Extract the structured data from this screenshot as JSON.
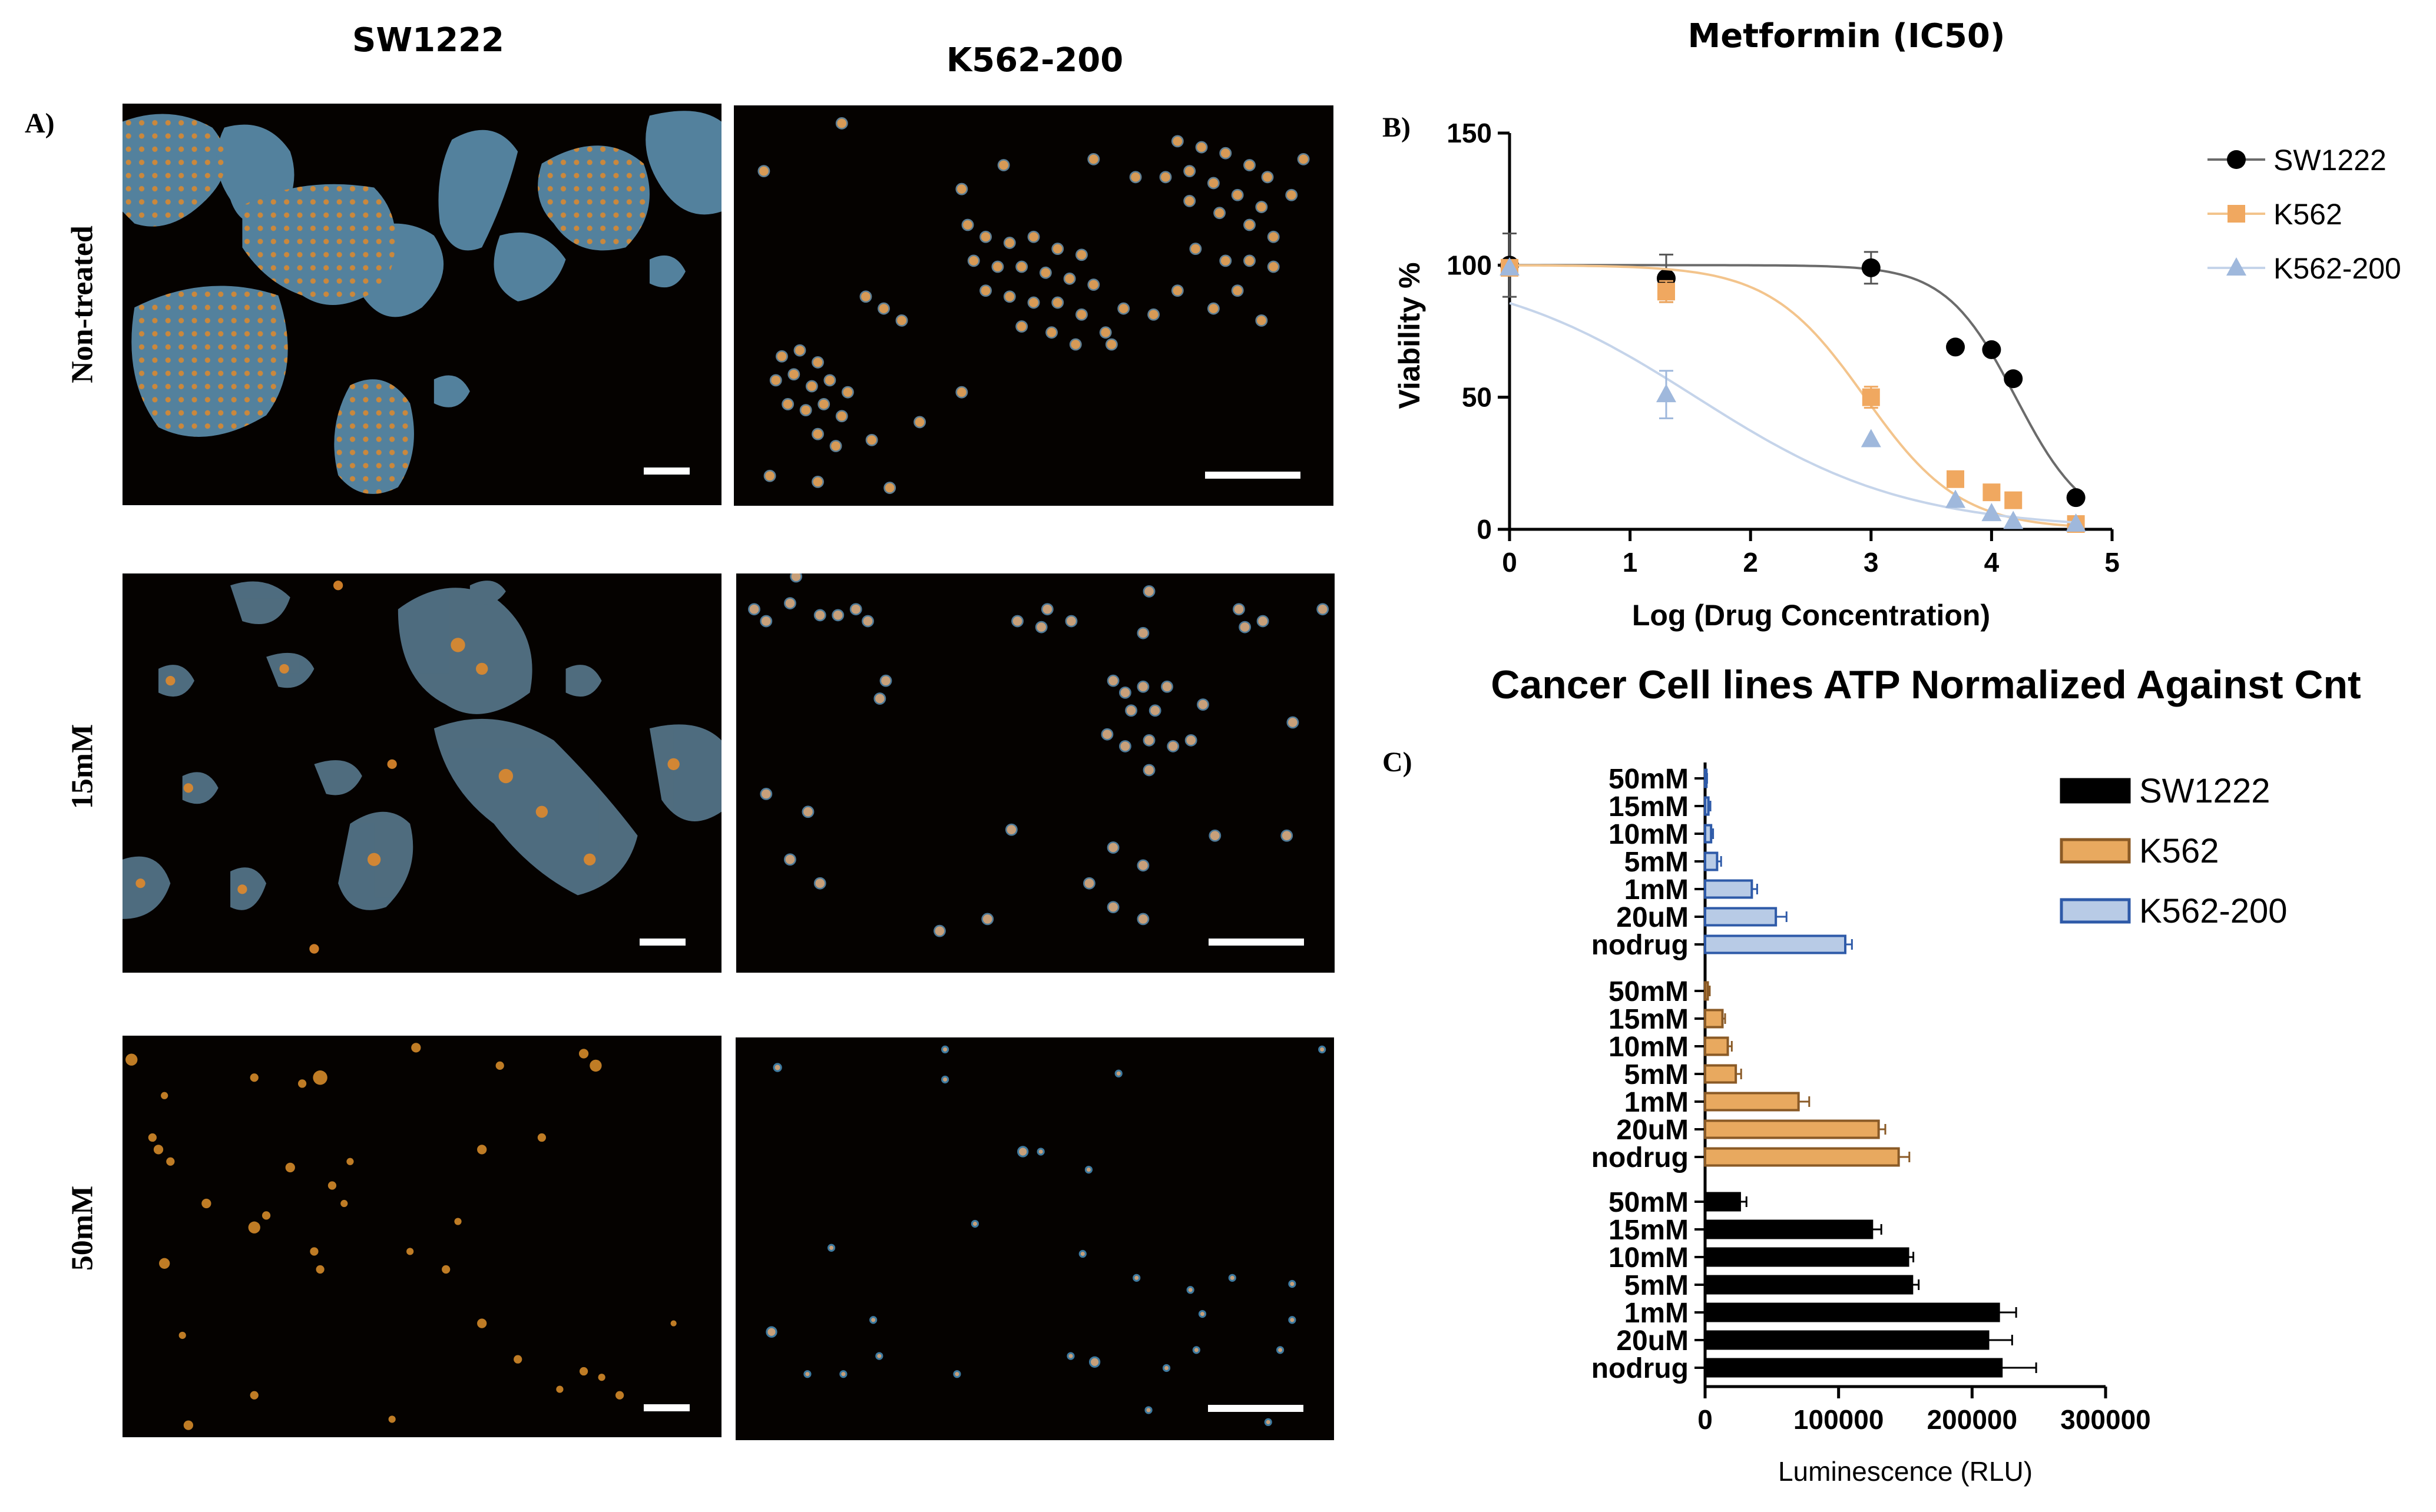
{
  "panel_a": {
    "label": "A)",
    "columns": [
      "SW1222",
      "K562-200"
    ],
    "rows": [
      "Non-treated",
      "15mM",
      "50mM"
    ]
  },
  "chart_data": [
    {
      "type": "scatter",
      "panel_label": "B)",
      "title": "Metformin (IC50)",
      "xlabel": "Log (Drug Concentration)",
      "ylabel": "Viability %",
      "xlim": [
        0,
        5
      ],
      "ylim": [
        0,
        150
      ],
      "x_ticks": [
        "0",
        "1",
        "2",
        "3",
        "4",
        "5"
      ],
      "y_ticks": [
        "0",
        "50",
        "100",
        "150"
      ],
      "legend_position": "right",
      "fit_curves": true,
      "series": [
        {
          "name": "SW1222",
          "marker": "circle",
          "color": "#000000",
          "curve_color": "#6b6b6b",
          "logIC50": 4.2,
          "hill": 1.5,
          "points": [
            {
              "x": 0,
              "y": 100,
              "err": 12
            },
            {
              "x": 1.3,
              "y": 95,
              "err": 9
            },
            {
              "x": 3,
              "y": 99,
              "err": 6
            },
            {
              "x": 3.7,
              "y": 69,
              "err": 0
            },
            {
              "x": 4,
              "y": 68,
              "err": 0
            },
            {
              "x": 4.18,
              "y": 57,
              "err": 0
            },
            {
              "x": 4.7,
              "y": 12,
              "err": 0
            }
          ]
        },
        {
          "name": "K562",
          "marker": "square",
          "color": "#f0a860",
          "curve_color": "#f3c48c",
          "logIC50": 2.95,
          "hill": 1.1,
          "points": [
            {
              "x": 0,
              "y": 99,
              "err": 0
            },
            {
              "x": 1.3,
              "y": 90,
              "err": 4
            },
            {
              "x": 3,
              "y": 50,
              "err": 4
            },
            {
              "x": 3.7,
              "y": 19,
              "err": 0
            },
            {
              "x": 4,
              "y": 14,
              "err": 0
            },
            {
              "x": 4.18,
              "y": 11,
              "err": 0
            },
            {
              "x": 4.7,
              "y": 2,
              "err": 0
            }
          ]
        },
        {
          "name": "K562-200",
          "marker": "triangle",
          "color": "#9fb8dc",
          "curve_color": "#c5d4ea",
          "logIC50": 1.55,
          "hill": 0.5,
          "points": [
            {
              "x": 0,
              "y": 99,
              "err": 0
            },
            {
              "x": 1.3,
              "y": 51,
              "err": 9
            },
            {
              "x": 3,
              "y": 34,
              "err": 0
            },
            {
              "x": 3.7,
              "y": 11,
              "err": 0
            },
            {
              "x": 4,
              "y": 6,
              "err": 0
            },
            {
              "x": 4.18,
              "y": 3,
              "err": 0
            },
            {
              "x": 4.7,
              "y": 2,
              "err": 0
            }
          ]
        }
      ]
    },
    {
      "type": "bar",
      "orientation": "horizontal",
      "panel_label": "C)",
      "title": "Cancer Cell lines ATP Normalized Against Cnt",
      "xlabel": "Luminescence (RLU)",
      "ylabel": "",
      "xlim": [
        0,
        300000
      ],
      "x_ticks": [
        "0",
        "100000",
        "200000",
        "300000"
      ],
      "legend_position": "right",
      "categories": [
        "50mM",
        "15mM",
        "10mM",
        "5mM",
        "1mM",
        "20uM",
        "nodrug"
      ],
      "series": [
        {
          "name": "K562-200",
          "color": "#2e5aa8",
          "fill": "#b8cbe6",
          "values": [
            1000,
            2500,
            4500,
            9000,
            35000,
            53000,
            105000
          ],
          "errors": [
            500,
            1500,
            1500,
            3000,
            4000,
            8000,
            5000
          ]
        },
        {
          "name": "K562",
          "color": "#8a5a26",
          "fill": "#e8a95f",
          "values": [
            2000,
            13000,
            17000,
            23000,
            70000,
            130000,
            145000
          ],
          "errors": [
            1500,
            2000,
            3000,
            4000,
            8000,
            5000,
            8000
          ]
        },
        {
          "name": "SW1222",
          "color": "#000000",
          "fill": "#000000",
          "values": [
            26000,
            125000,
            152000,
            155000,
            220000,
            212000,
            222000
          ],
          "errors": [
            5000,
            7000,
            4000,
            5000,
            13000,
            18000,
            26000
          ]
        }
      ]
    }
  ]
}
